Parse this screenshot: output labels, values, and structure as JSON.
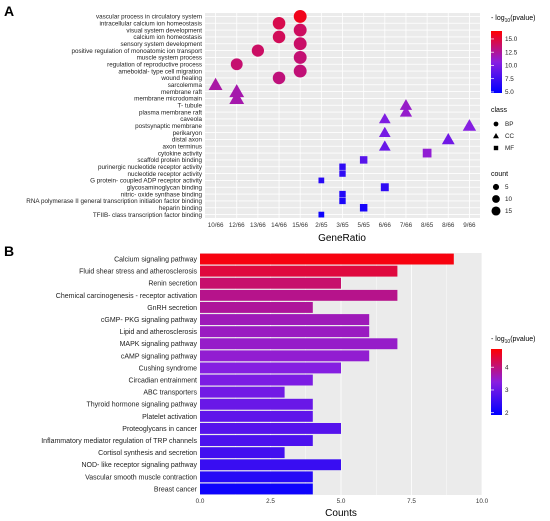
{
  "panel_a_letter": "A",
  "panel_b_letter": "B",
  "chart_data": [
    {
      "type": "scatter",
      "panel": "A",
      "xlabel": "GeneRatio",
      "x_ticks": [
        "10/66",
        "12/66",
        "13/66",
        "14/66",
        "15/66",
        "2/65",
        "3/65",
        "5/65",
        "6/66",
        "7/66",
        "8/65",
        "8/66",
        "9/66"
      ],
      "categories": [
        "vascular process in circulatory system",
        "intracellular calcium ion homeostasis",
        "visual system development",
        "calcium ion homeostasis",
        "sensory system development",
        "positive regulation of monoatomic ion transport",
        "muscle system process",
        "regulation of reproductive process",
        "ameboidal- type cell migration",
        "wound healing",
        "sarcolemma",
        "membrane raft",
        "membrane microdomain",
        "T- tubule",
        "plasma membrane raft",
        "caveola",
        "postsynaptic membrane",
        "perikaryon",
        "distal axon",
        "axon terminus",
        "cytokine activity",
        "scaffold protein binding",
        "purinergic nucleotide receptor activity",
        "nucleotide receptor activity",
        "G protein- coupled ADP receptor activity",
        "glycosaminoglycan binding",
        "nitric- oxide synthase binding",
        "RNA polymerase II general transcription initiation factor binding",
        "heparin binding",
        "TFIIB- class transcription factor binding"
      ],
      "points": [
        {
          "term": "vascular process in circulatory system",
          "x": "15/66",
          "class": "BP",
          "count": 15,
          "neglog10p": 15.8
        },
        {
          "term": "intracellular calcium ion homeostasis",
          "x": "14/66",
          "class": "BP",
          "count": 14,
          "neglog10p": 14.5
        },
        {
          "term": "visual system development",
          "x": "15/66",
          "class": "BP",
          "count": 15,
          "neglog10p": 14.0
        },
        {
          "term": "calcium ion homeostasis",
          "x": "14/66",
          "class": "BP",
          "count": 14,
          "neglog10p": 14.2
        },
        {
          "term": "sensory system development",
          "x": "15/66",
          "class": "BP",
          "count": 15,
          "neglog10p": 13.8
        },
        {
          "term": "positive regulation of monoatomic ion transport",
          "x": "13/66",
          "class": "BP",
          "count": 13,
          "neglog10p": 13.9
        },
        {
          "term": "muscle system process",
          "x": "15/66",
          "class": "BP",
          "count": 15,
          "neglog10p": 13.5
        },
        {
          "term": "regulation of reproductive process",
          "x": "12/66",
          "class": "BP",
          "count": 12,
          "neglog10p": 13.6
        },
        {
          "term": "ameboidal- type cell migration",
          "x": "15/66",
          "class": "BP",
          "count": 15,
          "neglog10p": 13.4
        },
        {
          "term": "wound healing",
          "x": "14/66",
          "class": "BP",
          "count": 14,
          "neglog10p": 13.3
        },
        {
          "term": "sarcolemma",
          "x": "10/66",
          "class": "CC",
          "count": 10,
          "neglog10p": 12.2
        },
        {
          "term": "membrane raft",
          "x": "12/66",
          "class": "CC",
          "count": 12,
          "neglog10p": 12.0
        },
        {
          "term": "membrane microdomain",
          "x": "12/66",
          "class": "CC",
          "count": 12,
          "neglog10p": 12.0
        },
        {
          "term": "T- tubule",
          "x": "7/66",
          "class": "CC",
          "count": 7,
          "neglog10p": 11.3
        },
        {
          "term": "plasma membrane raft",
          "x": "7/66",
          "class": "CC",
          "count": 7,
          "neglog10p": 11.2
        },
        {
          "term": "caveola",
          "x": "6/66",
          "class": "CC",
          "count": 6,
          "neglog10p": 10.2
        },
        {
          "term": "postsynaptic membrane",
          "x": "9/66",
          "class": "CC",
          "count": 9,
          "neglog10p": 10.5
        },
        {
          "term": "perikaryon",
          "x": "6/66",
          "class": "CC",
          "count": 6,
          "neglog10p": 9.8
        },
        {
          "term": "distal axon",
          "x": "8/66",
          "class": "CC",
          "count": 8,
          "neglog10p": 9.6
        },
        {
          "term": "axon terminus",
          "x": "6/66",
          "class": "CC",
          "count": 6,
          "neglog10p": 9.2
        },
        {
          "term": "cytokine activity",
          "x": "8/65",
          "class": "MF",
          "count": 8,
          "neglog10p": 11.0
        },
        {
          "term": "scaffold protein binding",
          "x": "5/65",
          "class": "MF",
          "count": 5,
          "neglog10p": 8.5
        },
        {
          "term": "purinergic nucleotide receptor activity",
          "x": "3/65",
          "class": "MF",
          "count": 3,
          "neglog10p": 6.8
        },
        {
          "term": "nucleotide receptor activity",
          "x": "3/65",
          "class": "MF",
          "count": 3,
          "neglog10p": 6.8
        },
        {
          "term": "G protein- coupled ADP receptor activity",
          "x": "2/65",
          "class": "MF",
          "count": 2,
          "neglog10p": 6.5
        },
        {
          "term": "glycosaminoglycan binding",
          "x": "6/66",
          "class": "MF",
          "count": 6,
          "neglog10p": 6.8
        },
        {
          "term": "nitric- oxide synthase binding",
          "x": "3/65",
          "class": "MF",
          "count": 3,
          "neglog10p": 6.3
        },
        {
          "term": "RNA polymerase II general transcription initiation factor binding",
          "x": "3/65",
          "class": "MF",
          "count": 3,
          "neglog10p": 6.0
        },
        {
          "term": "heparin binding",
          "x": "5/65",
          "class": "MF",
          "count": 5,
          "neglog10p": 5.8
        },
        {
          "term": "TFIIB- class transcription factor binding",
          "x": "2/65",
          "class": "MF",
          "count": 2,
          "neglog10p": 5.4
        }
      ],
      "legend_color": {
        "title_prefix": "- log",
        "title_sub": "10",
        "title_suffix": "(pvalue)",
        "ticks": [
          "15.0",
          "12.5",
          "10.0",
          "7.5",
          "5.0"
        ],
        "range": [
          4.8,
          16.5
        ],
        "colors": [
          "#0000ff",
          "#8a1fe0",
          "#ff0000"
        ]
      },
      "legend_class": {
        "title": "class",
        "items": [
          "BP",
          "CC",
          "MF"
        ]
      },
      "legend_count": {
        "title": "count",
        "items": [
          "5",
          "10",
          "15"
        ]
      }
    },
    {
      "type": "bar",
      "panel": "B",
      "orientation": "horizontal",
      "xlabel": "Counts",
      "xlim": [
        0,
        10
      ],
      "x_ticks": [
        "0.0",
        "2.5",
        "5.0",
        "7.5",
        "10.0"
      ],
      "categories": [
        "Calcium signaling pathway",
        "Fluid shear stress and atherosclerosis",
        "Renin secretion",
        "Chemical carcinogenesis -  receptor activation",
        "GnRH secretion",
        "cGMP- PKG signaling pathway",
        "Lipid and atherosclerosis",
        "MAPK signaling pathway",
        "cAMP signaling pathway",
        "Cushing syndrome",
        "Circadian entrainment",
        "ABC transporters",
        "Thyroid hormone signaling pathway",
        "Platelet activation",
        "Proteoglycans in cancer",
        "Inflammatory mediator regulation of TRP channels",
        "Cortisol synthesis and secretion",
        "NOD- like receptor signaling pathway",
        "Vascular smooth muscle contraction",
        "Breast cancer"
      ],
      "values": [
        9,
        7,
        5,
        7,
        4,
        6,
        6,
        7,
        6,
        5,
        4,
        3,
        4,
        4,
        5,
        4,
        3,
        5,
        4,
        4
      ],
      "neglog10p": [
        4.7,
        4.4,
        4.1,
        3.9,
        3.8,
        3.6,
        3.55,
        3.5,
        3.45,
        3.3,
        3.2,
        3.1,
        3.0,
        2.9,
        2.8,
        2.7,
        2.6,
        2.5,
        2.3,
        2.05
      ],
      "legend_color": {
        "title_prefix": "- log",
        "title_sub": "10",
        "title_suffix": "(pvalue)",
        "ticks": [
          "4",
          "3",
          "2"
        ],
        "range": [
          1.9,
          4.8
        ],
        "colors": [
          "#0000ff",
          "#8a1fe0",
          "#ff0000"
        ]
      }
    }
  ]
}
